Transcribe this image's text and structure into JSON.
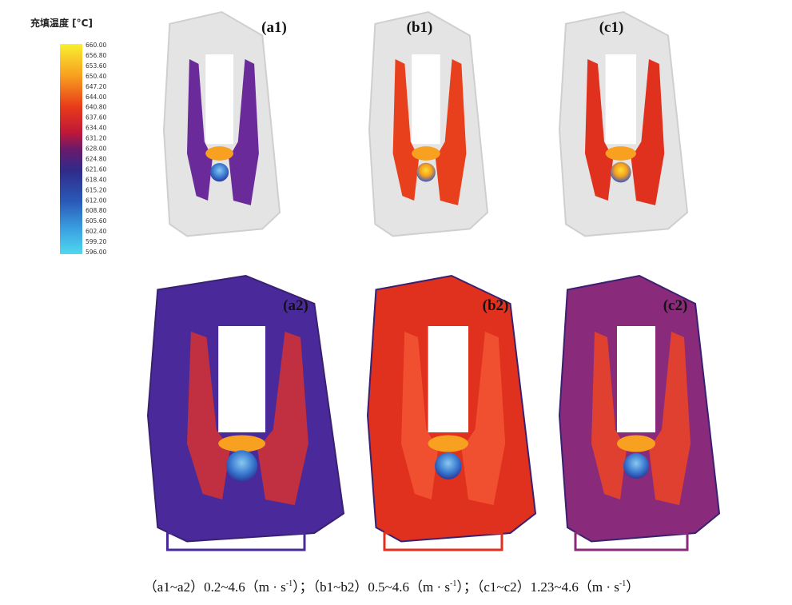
{
  "legend": {
    "title": "充填温度 [°C]",
    "ticks": [
      "660.00",
      "656.80",
      "653.60",
      "650.40",
      "647.20",
      "644.00",
      "640.80",
      "637.60",
      "634.40",
      "631.20",
      "628.00",
      "624.80",
      "621.60",
      "618.40",
      "615.20",
      "612.00",
      "608.80",
      "605.60",
      "602.40",
      "599.20",
      "596.00"
    ]
  },
  "panels": [
    {
      "label": "(a1)"
    },
    {
      "label": "(b1)"
    },
    {
      "label": "(c1)"
    },
    {
      "label": "(a2)"
    },
    {
      "label": "(b2)"
    },
    {
      "label": "(c2)"
    }
  ],
  "caption": [
    {
      "main": "（a1~a2）0.2~4.6（m · s",
      "sup": "-1",
      "end": "）；"
    },
    {
      "main": "（b1~b2）0.5~4.6（m · s",
      "sup": "-1",
      "end": "）；"
    },
    {
      "main": "（c1~c2）1.23~4.6（m · s",
      "sup": "-1",
      "end": "）"
    }
  ]
}
